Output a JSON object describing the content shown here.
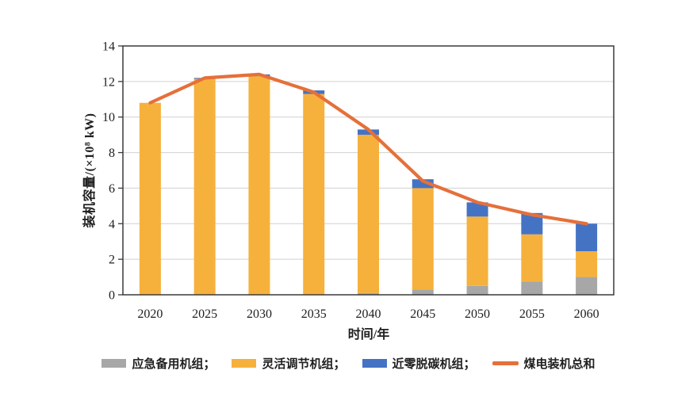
{
  "page": {
    "background": "#ffffff"
  },
  "chart_data": {
    "type": "bar",
    "subtype": "stacked-bars-with-total-line",
    "categories": [
      "2020",
      "2025",
      "2030",
      "2035",
      "2040",
      "2045",
      "2050",
      "2055",
      "2060"
    ],
    "series": [
      {
        "name": "应急备用机组",
        "type": "bar",
        "color": "#A7A7A7",
        "values": [
          0,
          0,
          0,
          0,
          0.1,
          0.3,
          0.5,
          0.75,
          1.0
        ]
      },
      {
        "name": "灵活调节机组",
        "type": "bar",
        "color": "#F6B13C",
        "values": [
          10.8,
          12.15,
          12.3,
          11.3,
          8.9,
          5.7,
          3.9,
          2.65,
          1.45
        ]
      },
      {
        "name": "近零脱碳机组",
        "type": "bar",
        "color": "#4573C4",
        "values": [
          0,
          0.05,
          0.1,
          0.2,
          0.3,
          0.5,
          0.8,
          1.2,
          1.55
        ]
      },
      {
        "name": "煤电装机总和",
        "type": "line",
        "color": "#E5703A",
        "values": [
          10.8,
          12.2,
          12.4,
          11.4,
          9.3,
          6.4,
          5.2,
          4.5,
          4.0
        ]
      }
    ],
    "bar_totals": [
      10.8,
      12.2,
      12.4,
      11.5,
      9.3,
      6.5,
      5.2,
      4.6,
      4.0
    ],
    "title": "",
    "xlabel": "时间/年",
    "ylabel": "装机容量/(×10⁸ kW)",
    "ylim": [
      0,
      14
    ],
    "ytick_step": 2,
    "yticks": [
      0,
      2,
      4,
      6,
      8,
      10,
      12,
      14
    ],
    "grid": true,
    "grid_color": "#D0D0D0",
    "axis_color": "#3a3a3a",
    "tick_label_color": "#202020",
    "legend_position": "bottom"
  },
  "legend": {
    "items": [
      {
        "label": "应急备用机组；",
        "color": "#A7A7A7",
        "shape": "rect"
      },
      {
        "label": "灵活调节机组；",
        "color": "#F6B13C",
        "shape": "rect"
      },
      {
        "label": "近零脱碳机组；",
        "color": "#4573C4",
        "shape": "rect"
      },
      {
        "label": "煤电装机总和",
        "color": "#E5703A",
        "shape": "line"
      }
    ]
  }
}
